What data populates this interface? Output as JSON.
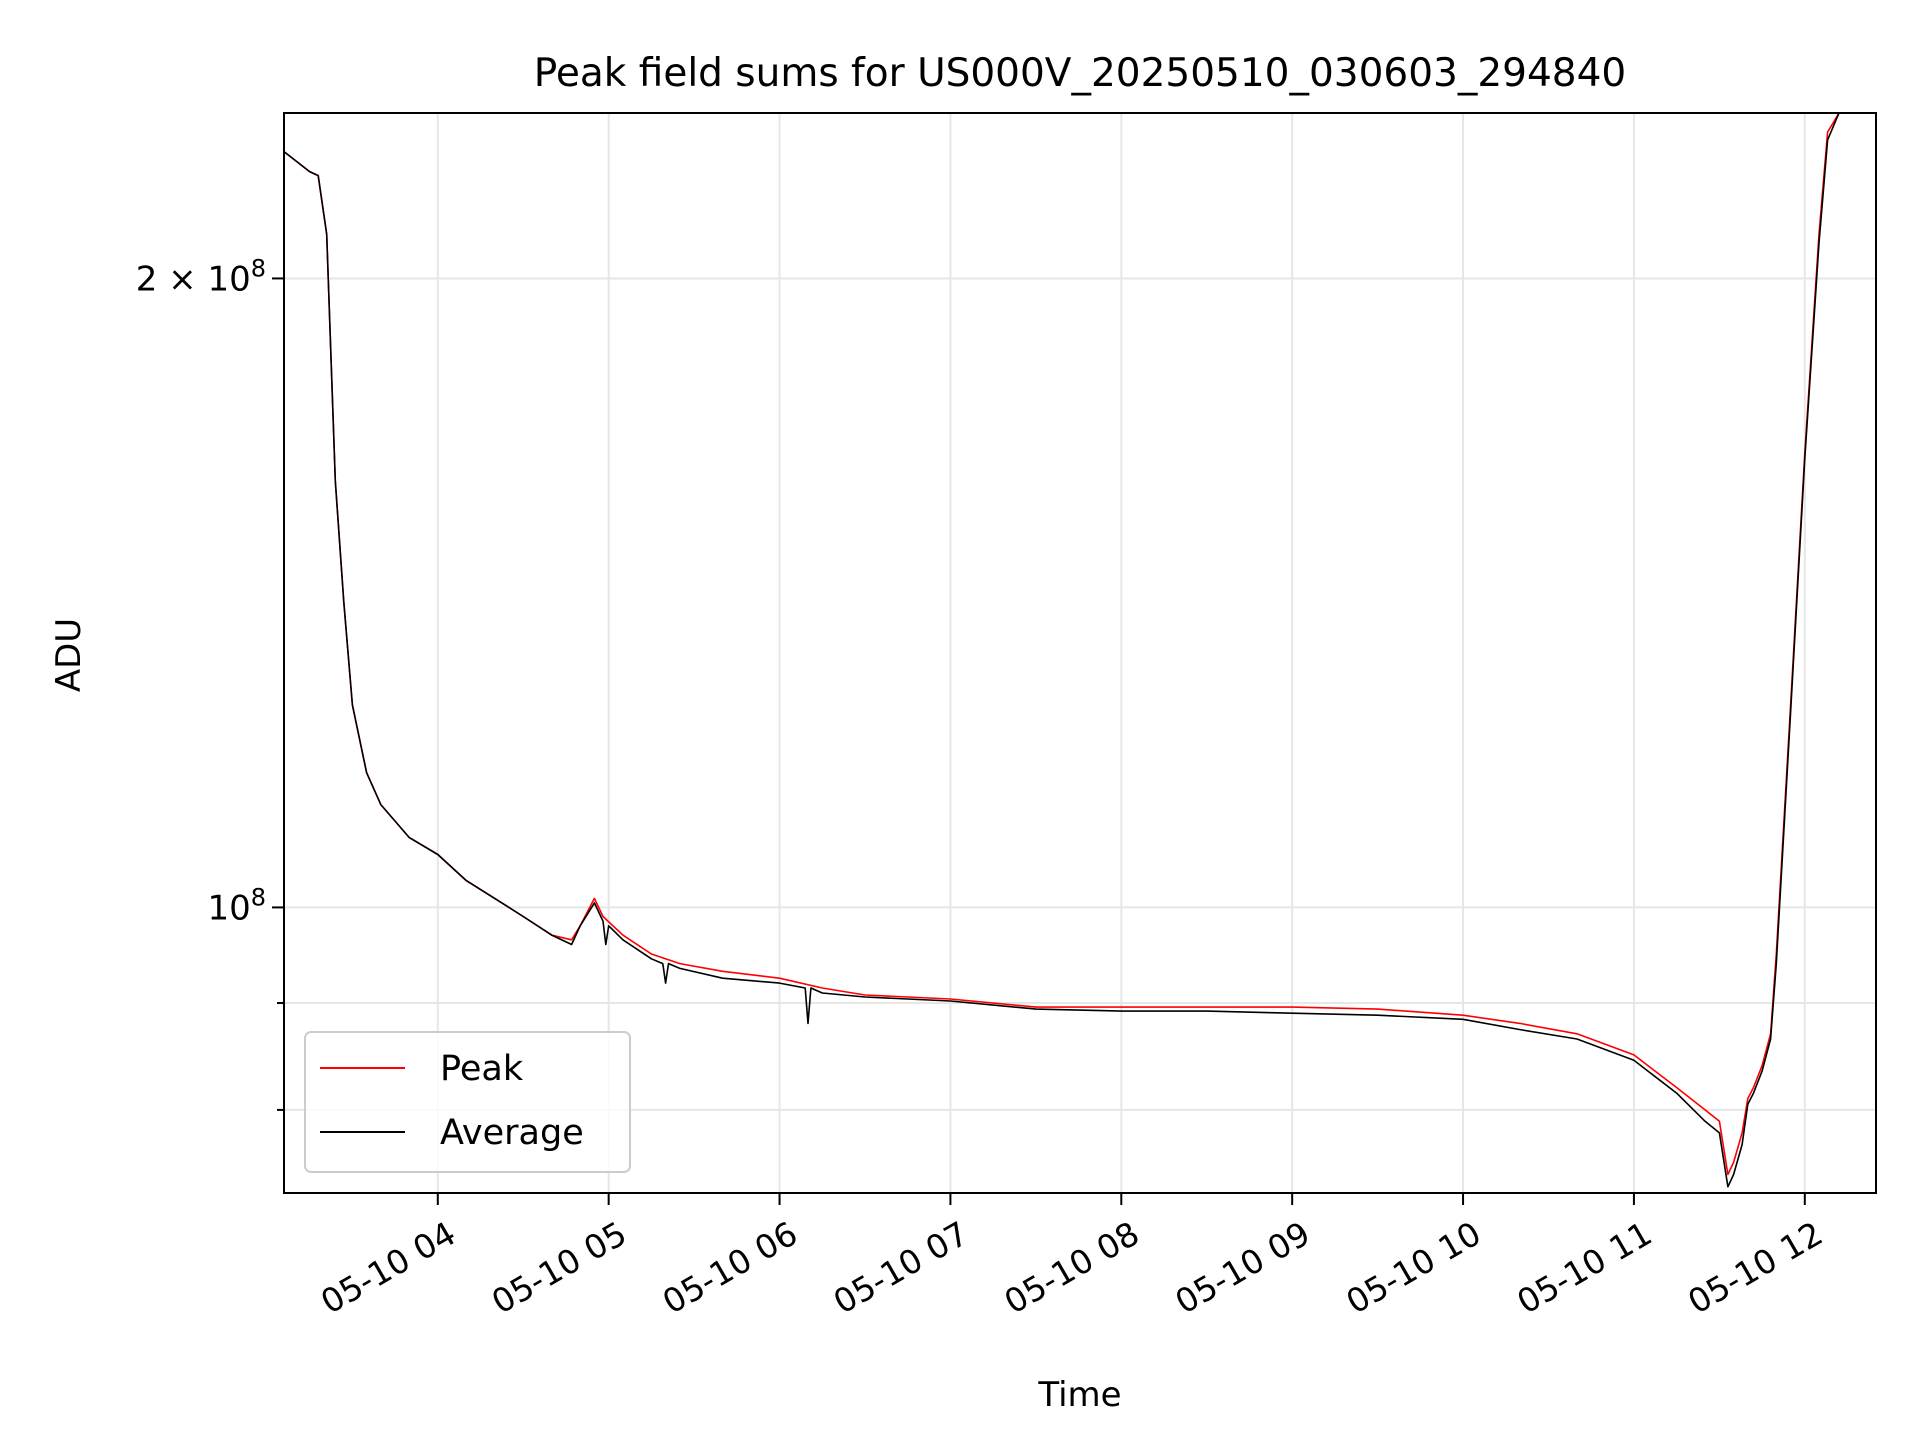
{
  "chart_data": {
    "type": "line",
    "title": "Peak field sums for US000V_20250510_030603_294840",
    "xlabel": "Time",
    "ylabel": "ADU",
    "y_scale": "log",
    "xlim": [
      "05-10 03:06",
      "05-10 12:25"
    ],
    "ylim": [
      73000000,
      240000000
    ],
    "grid": true,
    "legend_position": "lower-left",
    "x_ticks": [
      "05-10 04",
      "05-10 05",
      "05-10 06",
      "05-10 07",
      "05-10 08",
      "05-10 09",
      "05-10 10",
      "05-10 11",
      "05-10 12"
    ],
    "x_tick_times": [
      "05-10 04:00",
      "05-10 05:00",
      "05-10 06:00",
      "05-10 07:00",
      "05-10 08:00",
      "05-10 09:00",
      "05-10 10:00",
      "05-10 11:00",
      "05-10 12:00"
    ],
    "y_major_ticks": [
      {
        "value": 100000000,
        "mantissa": "",
        "exponent": "8"
      },
      {
        "value": 200000000,
        "mantissa": "2",
        "exponent": "8"
      }
    ],
    "y_minor_ticks": [
      80000000,
      90000000
    ],
    "series": [
      {
        "name": "Peak",
        "color": "#ff0000",
        "x": [
          "05-10 03:06",
          "05-10 03:15",
          "05-10 03:18",
          "05-10 03:21",
          "05-10 03:24",
          "05-10 03:27",
          "05-10 03:30",
          "05-10 03:35",
          "05-10 03:40",
          "05-10 03:50",
          "05-10 04:00",
          "05-10 04:10",
          "05-10 04:20",
          "05-10 04:30",
          "05-10 04:40",
          "05-10 04:47",
          "05-10 04:50",
          "05-10 04:55",
          "05-10 04:58",
          "05-10 05:05",
          "05-10 05:15",
          "05-10 05:25",
          "05-10 05:40",
          "05-10 06:00",
          "05-10 06:15",
          "05-10 06:30",
          "05-10 06:45",
          "05-10 07:00",
          "05-10 07:30",
          "05-10 08:00",
          "05-10 08:30",
          "05-10 09:00",
          "05-10 09:30",
          "05-10 10:00",
          "05-10 10:20",
          "05-10 10:40",
          "05-10 11:00",
          "05-10 11:15",
          "05-10 11:25",
          "05-10 11:30",
          "05-10 11:33",
          "05-10 11:35",
          "05-10 11:38",
          "05-10 11:40",
          "05-10 11:42",
          "05-10 11:45",
          "05-10 11:48",
          "05-10 11:50",
          "05-10 11:55",
          "05-10 12:00",
          "05-10 12:05",
          "05-10 12:08",
          "05-10 12:12",
          "05-10 12:25"
        ],
        "y": [
          230000000,
          225000000,
          224000000,
          210000000,
          160000000,
          140000000,
          125000000,
          116000000,
          112000000,
          108000000,
          106000000,
          103000000,
          101000000,
          99000000,
          97000000,
          96500000,
          98000000,
          101000000,
          99000000,
          97000000,
          95000000,
          94000000,
          93200000,
          92500000,
          91500000,
          90800000,
          90600000,
          90400000,
          89600000,
          89600000,
          89600000,
          89600000,
          89400000,
          88800000,
          88000000,
          87000000,
          85000000,
          82000000,
          80000000,
          79000000,
          74500000,
          75500000,
          78000000,
          81000000,
          82000000,
          84000000,
          87000000,
          95000000,
          125000000,
          165000000,
          210000000,
          235000000,
          240000000,
          240000000
        ]
      },
      {
        "name": "Average",
        "color": "#000000",
        "x": [
          "05-10 03:06",
          "05-10 03:15",
          "05-10 03:18",
          "05-10 03:21",
          "05-10 03:24",
          "05-10 03:27",
          "05-10 03:30",
          "05-10 03:35",
          "05-10 03:40",
          "05-10 03:50",
          "05-10 04:00",
          "05-10 04:10",
          "05-10 04:20",
          "05-10 04:30",
          "05-10 04:40",
          "05-10 04:47",
          "05-10 04:50",
          "05-10 04:55",
          "05-10 04:58",
          "05-10 04:59",
          "05-10 05:00",
          "05-10 05:05",
          "05-10 05:15",
          "05-10 05:19",
          "05-10 05:20",
          "05-10 05:21",
          "05-10 05:25",
          "05-10 05:40",
          "05-10 06:00",
          "05-10 06:09",
          "05-10 06:10",
          "05-10 06:11",
          "05-10 06:15",
          "05-10 06:30",
          "05-10 06:45",
          "05-10 07:00",
          "05-10 07:30",
          "05-10 08:00",
          "05-10 08:30",
          "05-10 09:00",
          "05-10 09:30",
          "05-10 10:00",
          "05-10 10:20",
          "05-10 10:40",
          "05-10 11:00",
          "05-10 11:15",
          "05-10 11:25",
          "05-10 11:30",
          "05-10 11:33",
          "05-10 11:35",
          "05-10 11:38",
          "05-10 11:40",
          "05-10 11:42",
          "05-10 11:45",
          "05-10 11:48",
          "05-10 11:50",
          "05-10 11:55",
          "05-10 12:00",
          "05-10 12:05",
          "05-10 12:08",
          "05-10 12:12",
          "05-10 12:25"
        ],
        "y": [
          230000000,
          225000000,
          224000000,
          210000000,
          160000000,
          140000000,
          125000000,
          116000000,
          112000000,
          108000000,
          106000000,
          103000000,
          101000000,
          99000000,
          97000000,
          96000000,
          98000000,
          100500000,
          98500000,
          96000000,
          98000000,
          96500000,
          94500000,
          94000000,
          92000000,
          94000000,
          93500000,
          92500000,
          92000000,
          91500000,
          88000000,
          91500000,
          91000000,
          90600000,
          90400000,
          90200000,
          89400000,
          89200000,
          89200000,
          89000000,
          88800000,
          88400000,
          87400000,
          86500000,
          84500000,
          81500000,
          79000000,
          78000000,
          73500000,
          74500000,
          77000000,
          80500000,
          81500000,
          83500000,
          86500000,
          94000000,
          124000000,
          164000000,
          208000000,
          233000000,
          240000000,
          240000000
        ]
      }
    ]
  }
}
